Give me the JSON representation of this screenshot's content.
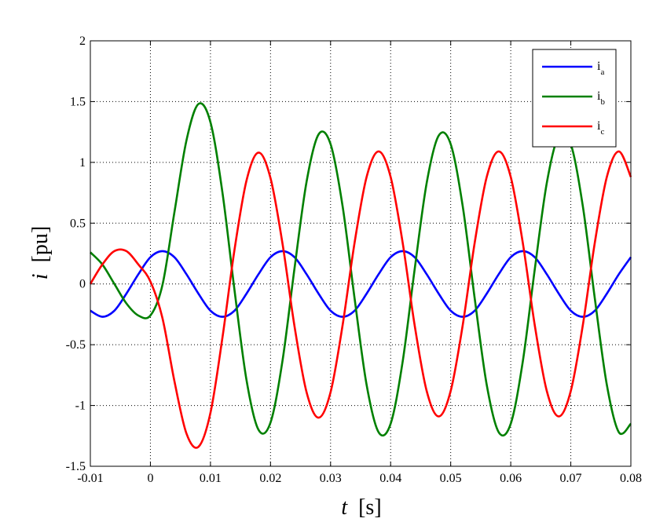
{
  "chart_data": {
    "type": "line",
    "x": [
      -0.01,
      -0.008,
      -0.006,
      -0.004,
      -0.002,
      0,
      0.002,
      0.004,
      0.006,
      0.008,
      0.01,
      0.012,
      0.014,
      0.016,
      0.018,
      0.02,
      0.022,
      0.024,
      0.026,
      0.028,
      0.03,
      0.032,
      0.034,
      0.036,
      0.038,
      0.04,
      0.042,
      0.044,
      0.046,
      0.048,
      0.05,
      0.052,
      0.054,
      0.056,
      0.058,
      0.06,
      0.062,
      0.064,
      0.066,
      0.068,
      0.07,
      0.072,
      0.074,
      0.076,
      0.078,
      0.08
    ],
    "series": [
      {
        "name": "ia",
        "color": "#0000ff",
        "values": [
          -0.22,
          -0.27,
          -0.22,
          -0.08,
          0.08,
          0.22,
          0.27,
          0.22,
          0.08,
          -0.08,
          -0.22,
          -0.27,
          -0.22,
          -0.08,
          0.08,
          0.22,
          0.27,
          0.22,
          0.08,
          -0.08,
          -0.22,
          -0.27,
          -0.22,
          -0.08,
          0.08,
          0.22,
          0.27,
          0.22,
          0.08,
          -0.08,
          -0.22,
          -0.27,
          -0.22,
          -0.08,
          0.08,
          0.22,
          0.27,
          0.22,
          0.08,
          -0.08,
          -0.22,
          -0.27,
          -0.22,
          -0.08,
          0.08,
          0.22
        ]
      },
      {
        "name": "ib",
        "color": "#008000",
        "values": [
          0.26,
          0.16,
          0,
          -0.16,
          -0.26,
          -0.26,
          -0.01,
          0.59,
          1.18,
          1.48,
          1.33,
          0.75,
          -0.05,
          -0.79,
          -1.2,
          -1.14,
          -0.63,
          0.13,
          0.84,
          1.23,
          1.15,
          0.64,
          -0.12,
          -0.83,
          -1.22,
          -1.15,
          -0.64,
          0.12,
          0.83,
          1.22,
          1.15,
          0.64,
          -0.12,
          -0.83,
          -1.22,
          -1.15,
          -0.64,
          0.12,
          0.83,
          1.22,
          1.15,
          0.64,
          -0.12,
          -0.83,
          -1.22,
          -1.15
        ]
      },
      {
        "name": "ic",
        "color": "#ff0000",
        "values": [
          0,
          0.16,
          0.27,
          0.27,
          0.16,
          0.02,
          -0.28,
          -0.8,
          -1.23,
          -1.34,
          -1.06,
          -0.44,
          0.28,
          0.85,
          1.08,
          0.87,
          0.33,
          -0.35,
          -0.89,
          -1.1,
          -0.89,
          -0.34,
          0.34,
          0.88,
          1.09,
          0.88,
          0.34,
          -0.34,
          -0.88,
          -1.09,
          -0.88,
          -0.34,
          0.34,
          0.88,
          1.09,
          0.88,
          0.34,
          -0.34,
          -0.88,
          -1.09,
          -0.88,
          -0.34,
          0.34,
          0.88,
          1.09,
          0.88
        ]
      }
    ],
    "xlabel": {
      "symbol": "t",
      "unit": "[s]"
    },
    "ylabel": {
      "symbol": "i",
      "unit": "[pu]"
    },
    "xlim": [
      -0.01,
      0.08
    ],
    "xticks": [
      -0.01,
      0,
      0.01,
      0.02,
      0.03,
      0.04,
      0.05,
      0.06,
      0.07,
      0.08
    ],
    "ylim": [
      -1.5,
      2
    ],
    "yticks": [
      -1.5,
      -1,
      -0.5,
      0,
      0.5,
      1,
      1.5,
      2
    ],
    "grid": true,
    "legend": "upper right"
  }
}
